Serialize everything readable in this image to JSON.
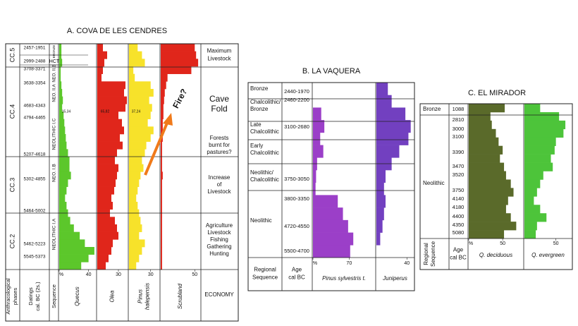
{
  "chart_data": [
    {
      "type": "profile",
      "title": "A. COVA DE LES CENDRES",
      "phases": [
        "CC.5",
        "CC.4",
        "CC.3",
        "CC.2"
      ],
      "datings": [
        "2457-1951",
        "2999-2488",
        "3708-3371",
        "3638-3354",
        "4683-4343",
        "4794-4465",
        "5207-4618",
        "5302-4855",
        "5464-5002",
        "5462-5223",
        "5545-5373"
      ],
      "sequence": [
        "BRONZE",
        "HCT",
        "NEO. II.B",
        "NEO. II.A",
        "NEOLITHIC I.C",
        "NEO. I.B",
        "NEOLITHIC I.A"
      ],
      "economy": [
        [
          "Maximum",
          "Livestock"
        ],
        [
          "Cave",
          "Fold"
        ],
        [
          "Forests",
          "burnt for",
          "pastures?"
        ],
        [
          "Increase",
          "of",
          "Livestock"
        ],
        [
          "Agriculture",
          "Livestock",
          "Fishing",
          "Gathering",
          "Hunting"
        ]
      ],
      "column_labels": [
        [
          "Anthracological",
          "phases"
        ],
        [
          "Datings",
          "cal. BC (2s.)"
        ],
        [
          "Sequence"
        ],
        [
          "ECONOMY"
        ]
      ],
      "annotations": [
        "Fire?",
        "15,34",
        "65,82",
        "37,24"
      ],
      "series": [
        {
          "name": [
            "Quecus"
          ],
          "color": "#5cc72b",
          "xlim": [
            0,
            50
          ],
          "xticks": [
            {
              "value": 0,
              "label": "%"
            },
            40
          ],
          "values": [
            3,
            3,
            4,
            2,
            2,
            3,
            4,
            5,
            4,
            6,
            7,
            8,
            9,
            10,
            12,
            14,
            14,
            16,
            12,
            10,
            8,
            10,
            12,
            15,
            20,
            28,
            35,
            48,
            40,
            30
          ]
        },
        {
          "name": [
            "Olea"
          ],
          "color": "#e0261b",
          "xlim": [
            0,
            43
          ],
          "xticks": [
            30
          ],
          "values": [
            8,
            14,
            10,
            8,
            6,
            40,
            38,
            42,
            40,
            30,
            35,
            38,
            32,
            36,
            28,
            25,
            30,
            28,
            26,
            24,
            20,
            22,
            18,
            25,
            28,
            30,
            22,
            20,
            16,
            12
          ]
        },
        {
          "name": [
            "Pinus",
            "halepensis"
          ],
          "color": "#f7e22a",
          "xlim": [
            0,
            42
          ],
          "xticks": [
            30
          ],
          "values": [
            12,
            18,
            22,
            6,
            8,
            30,
            34,
            28,
            32,
            30,
            26,
            34,
            30,
            24,
            22,
            18,
            20,
            16,
            14,
            12,
            10,
            12,
            14,
            16,
            18,
            14,
            22,
            18,
            14,
            10
          ]
        },
        {
          "name": [
            "Scrubland"
          ],
          "color": "#e0261b",
          "xlim": [
            0,
            58
          ],
          "xticks": [
            50
          ],
          "values": [
            50,
            52,
            55,
            45,
            10,
            8,
            6,
            5,
            4,
            4,
            3,
            3,
            3,
            2,
            2,
            2,
            2,
            3,
            2,
            2,
            2,
            2,
            2,
            2,
            2,
            2,
            2,
            2,
            2,
            2
          ]
        }
      ]
    },
    {
      "type": "profile",
      "title": "B. LA VAQUERA",
      "periods": [
        [
          "Bronze"
        ],
        [
          "Chalcolithic/",
          "Bronze"
        ],
        [
          "Late",
          "Chalcolithic"
        ],
        [
          "Early",
          "Chalcolithic"
        ],
        [
          "Neolithic/",
          "Chalcolithic"
        ],
        [
          "Neolithic"
        ]
      ],
      "ages": [
        "2440-1970",
        "2460-2200",
        "3100-2680",
        "3750-3050",
        "3800-3350",
        "4720-4550",
        "5500-4700"
      ],
      "column_labels": [
        [
          "Regional",
          "Sequence"
        ],
        [
          "Age",
          "cal BC"
        ]
      ],
      "series": [
        {
          "name": [
            "Pinus sylvestris t."
          ],
          "color": "#9b3fc8",
          "xlim": [
            0,
            120
          ],
          "xticks": [
            {
              "value": 0,
              "label": "%"
            },
            70
          ],
          "values": [
            0,
            0,
            16,
            22,
            14,
            20,
            8,
            6,
            5,
            48,
            58,
            68,
            78,
            72
          ]
        },
        {
          "name": [
            "Juniperus"
          ],
          "color": "#7240c0",
          "xlim": [
            0,
            49
          ],
          "xticks": [
            40
          ],
          "values": [
            15,
            20,
            38,
            45,
            42,
            30,
            20,
            12,
            10,
            12,
            10,
            8,
            5,
            0
          ]
        }
      ]
    },
    {
      "type": "profile",
      "title": "C. EL MIRADOR",
      "periods": [
        [
          "Bronze"
        ],
        [
          "Neolithic"
        ]
      ],
      "ages": [
        "1088",
        "2810",
        "3000",
        "3100",
        "3390",
        "3470",
        "3520",
        "3750",
        "4140",
        "4180",
        "4400",
        "4350",
        "5080"
      ],
      "column_labels": [
        [
          "Regional",
          "Sequence"
        ],
        [
          "Age",
          "cal BC"
        ]
      ],
      "series": [
        {
          "name": [
            "Q. deciduous"
          ],
          "color": "#5a6a2a",
          "xlim": [
            0,
            80
          ],
          "xticks": [
            {
              "value": 0,
              "label": "%"
            },
            50
          ],
          "values": [
            53,
            32,
            34,
            40,
            44,
            50,
            46,
            52,
            55,
            62,
            66,
            58,
            55,
            62,
            70,
            52
          ]
        },
        {
          "name": [
            "Q. evergreen"
          ],
          "color": "#4dc43a",
          "xlim": [
            0,
            75
          ],
          "xticks": [
            50
          ],
          "values": [
            25,
            55,
            65,
            62,
            50,
            48,
            42,
            45,
            30,
            25,
            20,
            15,
            25,
            35,
            20,
            18
          ]
        }
      ]
    }
  ]
}
